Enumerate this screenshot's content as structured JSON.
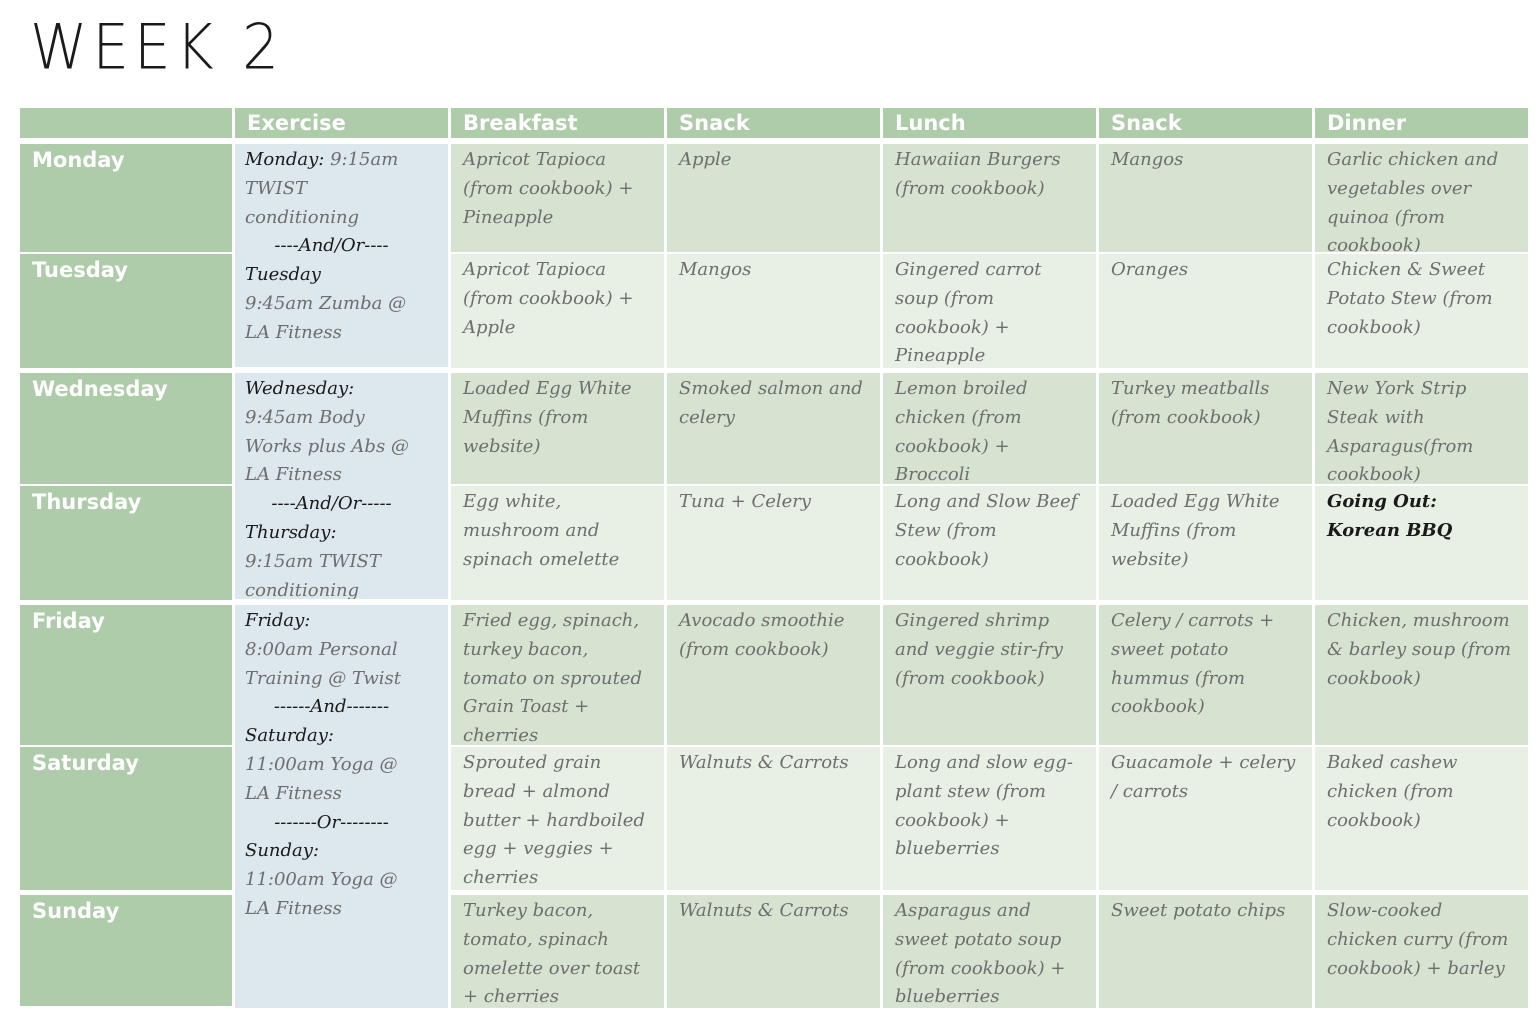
{
  "title": "WEEK 2",
  "columns": [
    "Exercise",
    "Breakfast",
    "Snack",
    "Lunch",
    "Snack",
    "Dinner"
  ],
  "days": [
    "Monday",
    "Tuesday",
    "Wednesday",
    "Thursday",
    "Friday",
    "Saturday",
    "Sunday"
  ],
  "exercise": {
    "mon_tue": {
      "monday_label": "Monday:",
      "monday_text_1": " 9:15am",
      "monday_text_2": "TWIST",
      "monday_text_3": "conditioning",
      "separator": "----And/Or----",
      "tuesday_label": "Tuesday",
      "tuesday_text_1": "9:45am Zumba @",
      "tuesday_text_2": "LA Fitness"
    },
    "wed_thu": {
      "wednesday_label": "Wednesday:",
      "wednesday_text_1": "9:45am Body",
      "wednesday_text_2": "Works plus Abs @",
      "wednesday_text_3": "LA Fitness",
      "separator": "----And/Or-----",
      "thursday_label": "Thursday:",
      "thursday_text_1": "9:15am TWIST",
      "thursday_text_2": "conditioning"
    },
    "fri_sun": {
      "friday_label": "Friday:",
      "friday_text_1": "8:00am Personal",
      "friday_text_2": "Training @ Twist",
      "separator_1": "------And-------",
      "saturday_label": "Saturday:",
      "saturday_text_1": "11:00am Yoga @",
      "saturday_text_2": "LA Fitness",
      "separator_2": "-------Or--------",
      "sunday_label": "Sunday:",
      "sunday_text_1": "11:00am Yoga @",
      "sunday_text_2": "LA Fitness"
    }
  },
  "meals": {
    "monday": {
      "breakfast": "Apricot Tapioca (from cookbook) + Pineapple",
      "snack1": "Apple",
      "lunch": "Hawaiian Burgers (from cookbook)",
      "snack2": "Mangos",
      "dinner": "Garlic chicken and vegetables over quinoa (from cookbook)"
    },
    "tuesday": {
      "breakfast": "Apricot Tapioca (from cookbook) + Apple",
      "snack1": "Mangos",
      "lunch": "Gingered carrot soup (from cookbook) + Pineapple",
      "snack2": "Oranges",
      "dinner": "Chicken & Sweet Potato Stew (from cookbook)"
    },
    "wednesday": {
      "breakfast": "Loaded Egg White Muffins (from website)",
      "snack1": "Smoked salmon and celery",
      "lunch": "Lemon broiled chicken (from cookbook) + Broccoli",
      "snack2": "Turkey meatballs (from cookbook)",
      "dinner": "New York Strip Steak with Asparagus(from cookbook)"
    },
    "thursday": {
      "breakfast": "Egg white, mushroom and spinach omelette",
      "snack1": "Tuna + Celery",
      "lunch": "Long and Slow Beef Stew (from cookbook)",
      "snack2": "Loaded Egg White Muffins (from website)",
      "dinner_line1": "Going Out:",
      "dinner_line2": "Korean BBQ"
    },
    "friday": {
      "breakfast": "Fried egg, spinach, turkey bacon, tomato on sprouted Grain Toast + cherries",
      "snack1": "Avocado smoothie (from cookbook)",
      "lunch": "Gingered shrimp and veggie stir-fry (from cookbook)",
      "snack2": "Celery / carrots + sweet potato hummus (from cookbook)",
      "dinner": "Chicken, mushroom & barley soup (from cookbook)"
    },
    "saturday": {
      "breakfast": "Sprouted grain bread + almond butter + hardboiled egg + veggies + cherries",
      "snack1": "Walnuts & Carrots",
      "lunch": "Long and slow egg-plant stew (from cookbook) + blueberries",
      "snack2": "Guacamole + celery / carrots",
      "dinner": "Baked cashew chicken (from cookbook)"
    },
    "sunday": {
      "breakfast": "Turkey bacon, tomato, spinach omelette over toast + cherries",
      "snack1": "Walnuts & Carrots",
      "lunch": "Asparagus and sweet potato soup (from cookbook) + blueberries",
      "snack2": "Sweet potato chips",
      "dinner": "Slow-cooked chicken curry (from cookbook) + barley"
    }
  },
  "colors": {
    "header_green": "#aecbaa",
    "cell_dark": "#d6e3d1",
    "cell_light": "#e8efe5",
    "exercise_blue": "#dce7ee"
  }
}
